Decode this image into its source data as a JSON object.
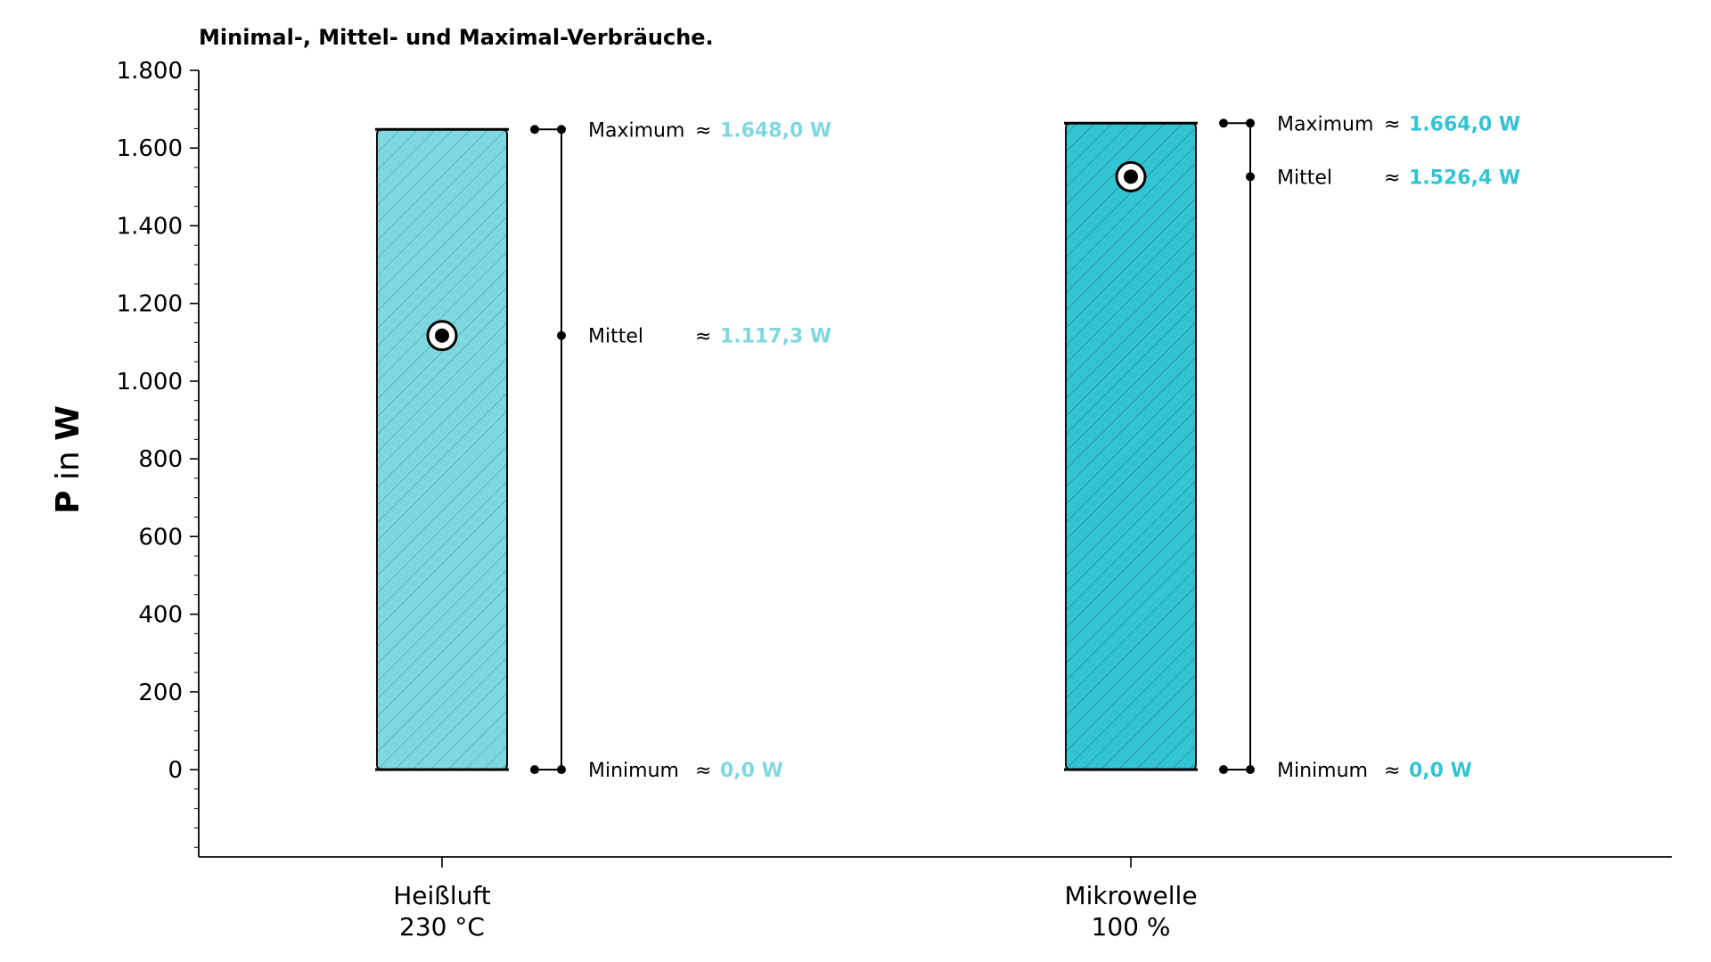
{
  "chart_data": {
    "type": "bar",
    "title": "Minimal-, Mittel- und Maximal-Verbräuche.",
    "ylabel": {
      "bold_p": "P",
      "in": " in ",
      "bold_w": "W"
    },
    "ylim": [
      -225,
      1800
    ],
    "yticks": [
      0,
      200,
      400,
      600,
      800,
      1000,
      1200,
      1400,
      1600,
      1800
    ],
    "ytick_labels": [
      "0",
      "200",
      "400",
      "600",
      "800",
      "1.000",
      "1.200",
      "1.400",
      "1.600",
      "1.800"
    ],
    "grid": false,
    "categories": [
      {
        "line1": "Heißluft",
        "line2": "230 °C"
      },
      {
        "line1": "Mikrowelle",
        "line2": "100 %"
      }
    ],
    "series": [
      {
        "category_index": 0,
        "min": 0.0,
        "mean": 1117.3,
        "max": 1648.0,
        "color": "#7fd8e0",
        "max_label": "Maximum",
        "max_text": "1.648,0 W",
        "mean_label": "Mittel",
        "mean_text": "1.117,3 W",
        "min_label": "Minimum",
        "min_text": "0,0 W"
      },
      {
        "category_index": 1,
        "min": 0.0,
        "mean": 1526.4,
        "max": 1664.0,
        "color": "#33c4d2",
        "max_label": "Maximum",
        "max_text": "1.664,0 W",
        "mean_label": "Mittel",
        "mean_text": "1.526,4 W",
        "min_label": "Minimum",
        "min_text": "0,0 W"
      }
    ],
    "approx_symbol": "≈"
  }
}
